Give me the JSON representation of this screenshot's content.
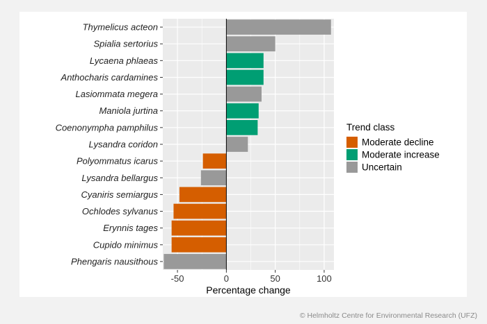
{
  "chart_data": {
    "type": "bar",
    "orientation": "horizontal",
    "xlabel": "Percentage change",
    "ylabel": "",
    "xlim": [
      -65,
      110
    ],
    "xticks": [
      -50,
      0,
      50,
      100
    ],
    "xtick_labels": [
      "-50",
      "0",
      "50",
      "100"
    ],
    "grid": true,
    "legend_position": "right",
    "legend": {
      "title": "Trend class",
      "entries": [
        {
          "label": "Moderate decline",
          "color": "#d55e00"
        },
        {
          "label": "Moderate increase",
          "color": "#009e73"
        },
        {
          "label": "Uncertain",
          "color": "#999999"
        }
      ]
    },
    "categories": [
      "Thymelicus acteon",
      "Spialia sertorius",
      "Lycaena phlaeas",
      "Anthocharis cardamines",
      "Lasiommata megera",
      "Maniola jurtina",
      "Coenonympha pamphilus",
      "Lysandra coridon",
      "Polyommatus icarus",
      "Lysandra bellargus",
      "Cyaniris semiargus",
      "Ochlodes sylvanus",
      "Erynnis tages",
      "Cupido minimus",
      "Phengaris nausithous"
    ],
    "values": [
      107,
      50,
      38,
      38,
      36,
      33,
      32,
      22,
      -24,
      -26,
      -48,
      -54,
      -56,
      -56,
      -64
    ],
    "trend_class": [
      "Uncertain",
      "Uncertain",
      "Moderate increase",
      "Moderate increase",
      "Uncertain",
      "Moderate increase",
      "Moderate increase",
      "Uncertain",
      "Moderate decline",
      "Uncertain",
      "Moderate decline",
      "Moderate decline",
      "Moderate decline",
      "Moderate decline",
      "Uncertain"
    ]
  },
  "footer": {
    "credit": "© Helmholtz Centre for Environmental Research (UFZ)"
  },
  "colors": {
    "panel_bg": "#ebebeb",
    "grid": "#ffffff",
    "zero_line": "#000000"
  }
}
